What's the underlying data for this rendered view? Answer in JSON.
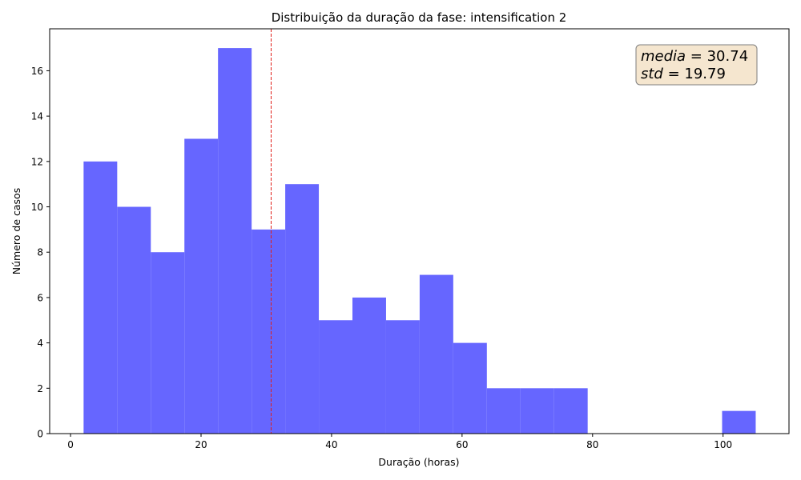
{
  "chart_data": {
    "type": "bar",
    "title": "Distribuição da duração da fase: intensification 2",
    "xlabel": "Duração (horas)",
    "ylabel": "Número de casos",
    "xlim": [
      -3.2,
      110.1
    ],
    "ylim": [
      0,
      17.85
    ],
    "xticks": [
      0,
      20,
      40,
      60,
      80,
      100
    ],
    "yticks": [
      0,
      2,
      4,
      6,
      8,
      10,
      12,
      14,
      16
    ],
    "bin_edges": [
      2.0,
      7.15,
      12.3,
      17.45,
      22.6,
      27.75,
      32.9,
      38.05,
      43.2,
      48.35,
      53.5,
      58.65,
      63.8,
      68.95,
      74.1,
      79.25,
      84.4,
      89.55,
      94.7,
      99.85,
      105.0
    ],
    "counts": [
      12,
      10,
      8,
      13,
      17,
      9,
      11,
      5,
      6,
      5,
      7,
      4,
      2,
      2,
      2,
      0,
      0,
      0,
      0,
      1
    ],
    "bar_color": "#6666ff",
    "mean_line": {
      "x": 30.74,
      "color": "#e0201b"
    },
    "annotation": {
      "mean_label": "media",
      "mean_value": "30.74",
      "std_label": "std",
      "std_value": "19.79",
      "box_fill": "#f5e6cf",
      "box_stroke": "#7f7f7f"
    },
    "grid": false,
    "legend": "none"
  }
}
